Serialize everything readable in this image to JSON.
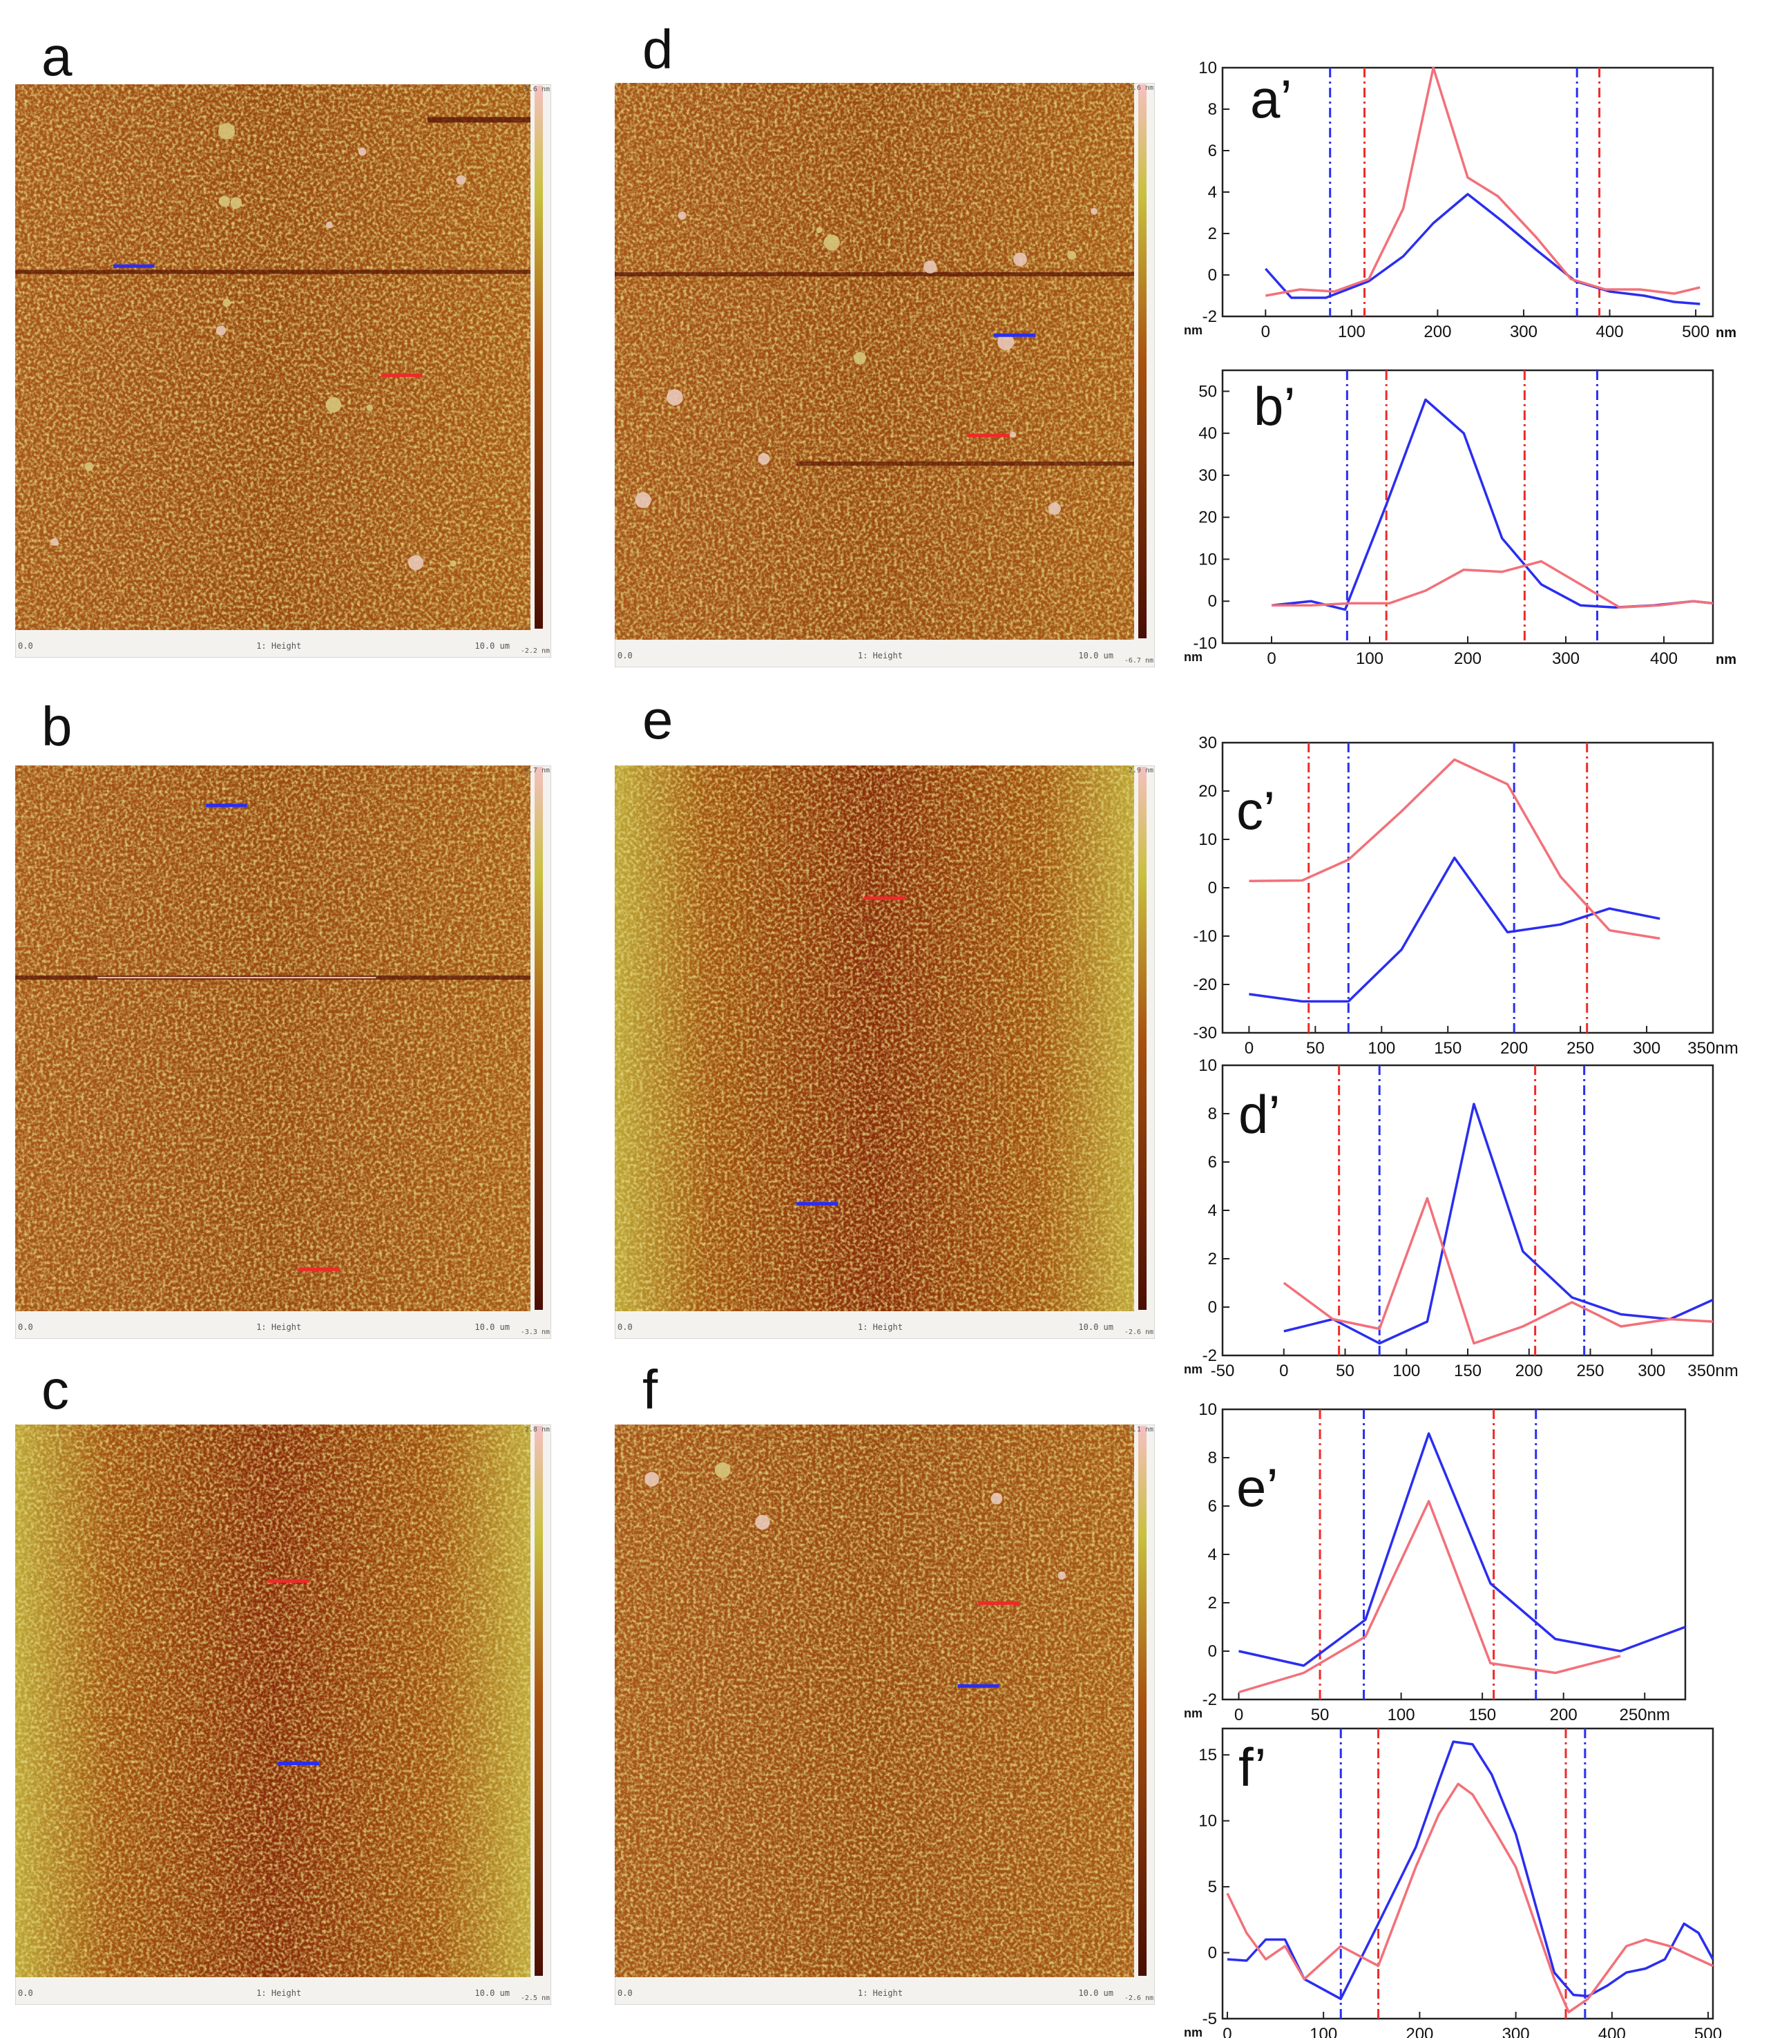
{
  "figure": {
    "panel_labels": [
      "a",
      "b",
      "c",
      "d",
      "e",
      "f"
    ]
  },
  "afm_images": [
    {
      "id": "a",
      "scale_top": "5.6 nm",
      "scale_bottom": "-2.2 nm",
      "foot_left": "0.0",
      "foot_mid": "1: Height",
      "foot_right": "10.0 um",
      "has_scan_line": true,
      "has_particles": true,
      "center_dark": false
    },
    {
      "id": "b",
      "scale_top": "6.7 nm",
      "scale_bottom": "-3.3 nm",
      "foot_left": "0.0",
      "foot_mid": "1: Height",
      "foot_right": "10.0 um",
      "has_scan_line": true,
      "has_particles": false,
      "center_dark": false
    },
    {
      "id": "c",
      "scale_top": "2.8 nm",
      "scale_bottom": "-2.5 nm",
      "foot_left": "0.0",
      "foot_mid": "1: Height",
      "foot_right": "10.0 um",
      "has_scan_line": false,
      "has_particles": false,
      "center_dark": true
    },
    {
      "id": "d",
      "scale_top": "8.6 nm",
      "scale_bottom": "-6.7 nm",
      "foot_left": "0.0",
      "foot_mid": "1: Height",
      "foot_right": "10.0 um",
      "has_scan_line": true,
      "has_particles": true,
      "center_dark": false
    },
    {
      "id": "e",
      "scale_top": "2.9 nm",
      "scale_bottom": "-2.6 nm",
      "foot_left": "0.0",
      "foot_mid": "1: Height",
      "foot_right": "10.0 um",
      "has_scan_line": false,
      "has_particles": false,
      "center_dark": true
    },
    {
      "id": "f",
      "scale_top": "3.1 nm",
      "scale_bottom": "-2.6 nm",
      "foot_left": "0.0",
      "foot_mid": "1: Height",
      "foot_right": "10.0 um",
      "has_scan_line": false,
      "has_particles": true,
      "center_dark": false
    }
  ],
  "colors": {
    "afm_dark": "#6b1a08",
    "afm_mid": "#a8520f",
    "afm_light": "#c8b43a",
    "blue": "#2a2ef0",
    "red": "#f2707a",
    "red_dash": "#ee2a2a",
    "axis": "#222222"
  },
  "chart_data": [
    {
      "type": "line",
      "label": "a’",
      "xlim": [
        -50,
        520
      ],
      "ylim": [
        -2,
        10
      ],
      "xticks": [
        0,
        100,
        200,
        300,
        400,
        500
      ],
      "xticklabels": [
        "0",
        "100",
        "200",
        "300",
        "400",
        "500"
      ],
      "yticks": [
        -2,
        0,
        2,
        4,
        6,
        8,
        10
      ],
      "yticklabels": [
        "-2",
        "0",
        "2",
        "4",
        "6",
        "8",
        "10"
      ],
      "unit_x": "nm",
      "unit_y": "nm",
      "series": [
        {
          "name": "blue",
          "color": "blue",
          "x": [
            0,
            30,
            70,
            120,
            160,
            195,
            235,
            275,
            315,
            360,
            400,
            440,
            475,
            505
          ],
          "y": [
            0.3,
            -1.1,
            -1.1,
            -0.3,
            0.9,
            2.5,
            3.9,
            2.6,
            1.2,
            -0.3,
            -0.8,
            -1.0,
            -1.3,
            -1.4
          ]
        },
        {
          "name": "red",
          "color": "red",
          "x": [
            0,
            40,
            80,
            120,
            160,
            195,
            235,
            270,
            315,
            355,
            395,
            435,
            475,
            505
          ],
          "y": [
            -1.0,
            -0.7,
            -0.8,
            -0.2,
            3.2,
            10.0,
            4.7,
            3.8,
            1.8,
            -0.2,
            -0.7,
            -0.7,
            -0.9,
            -0.6
          ]
        }
      ],
      "vlines": [
        {
          "x": 75,
          "color": "blue"
        },
        {
          "x": 115,
          "color": "red"
        },
        {
          "x": 362,
          "color": "blue"
        },
        {
          "x": 388,
          "color": "red"
        }
      ]
    },
    {
      "type": "line",
      "label": "b’",
      "xlim": [
        -50,
        450
      ],
      "ylim": [
        -10,
        55
      ],
      "xticks": [
        0,
        100,
        200,
        300,
        400
      ],
      "xticklabels": [
        "0",
        "100",
        "200",
        "300",
        "400"
      ],
      "yticks": [
        -10,
        0,
        10,
        20,
        30,
        40,
        50
      ],
      "yticklabels": [
        "-10",
        "0",
        "10",
        "20",
        "30",
        "40",
        "50"
      ],
      "unit_x": "nm",
      "unit_y": "nm",
      "series": [
        {
          "name": "blue",
          "color": "blue",
          "x": [
            0,
            40,
            75,
            117,
            157,
            196,
            235,
            275,
            315,
            350,
            390,
            430,
            450
          ],
          "y": [
            -1,
            0,
            -2,
            23,
            48,
            40,
            15,
            4,
            -1,
            -1.5,
            -1,
            0,
            -0.5
          ]
        },
        {
          "name": "red",
          "color": "red",
          "x": [
            0,
            40,
            80,
            120,
            157,
            196,
            235,
            275,
            315,
            355,
            395,
            430,
            450
          ],
          "y": [
            -1,
            -1,
            -0.5,
            -0.5,
            2.5,
            7.5,
            7,
            9.5,
            4,
            -1.5,
            -1,
            0,
            -0.5
          ]
        }
      ],
      "vlines": [
        {
          "x": 77,
          "color": "blue"
        },
        {
          "x": 117,
          "color": "red"
        },
        {
          "x": 258,
          "color": "red"
        },
        {
          "x": 332,
          "color": "blue"
        }
      ]
    },
    {
      "type": "line",
      "label": "c’",
      "xlim": [
        -20,
        350
      ],
      "ylim": [
        -30,
        30
      ],
      "xticks": [
        0,
        50,
        100,
        150,
        200,
        250,
        300,
        350
      ],
      "xticklabels": [
        "0",
        "50",
        "100",
        "150",
        "200",
        "250",
        "300",
        "350nm"
      ],
      "yticks": [
        -30,
        -20,
        -10,
        0,
        10,
        20,
        30
      ],
      "yticklabels": [
        "-30",
        "-20",
        "-10",
        "0",
        "10",
        "20",
        "30"
      ],
      "unit_x": "",
      "unit_y": "",
      "series": [
        {
          "name": "blue",
          "color": "blue",
          "x": [
            0,
            40,
            75,
            115,
            155,
            195,
            235,
            272,
            310
          ],
          "y": [
            -22,
            -23.5,
            -23.5,
            -12.8,
            6.2,
            -9.2,
            -7.6,
            -4.3,
            -6.4
          ]
        },
        {
          "name": "red",
          "color": "red",
          "x": [
            0,
            40,
            75,
            115,
            155,
            195,
            235,
            272,
            310
          ],
          "y": [
            1.4,
            1.5,
            5.8,
            15.8,
            26.5,
            21.4,
            2.3,
            -8.8,
            -10.5
          ]
        }
      ],
      "vlines": [
        {
          "x": 45,
          "color": "red"
        },
        {
          "x": 75,
          "color": "blue"
        },
        {
          "x": 200,
          "color": "blue"
        },
        {
          "x": 255,
          "color": "red"
        }
      ]
    },
    {
      "type": "line",
      "label": "d’",
      "xlim": [
        -50,
        350
      ],
      "ylim": [
        -2,
        10
      ],
      "xticks": [
        -50,
        0,
        50,
        100,
        150,
        200,
        250,
        300,
        350
      ],
      "xticklabels": [
        "-50",
        "0",
        "50",
        "100",
        "150",
        "200",
        "250",
        "300",
        "350nm"
      ],
      "yticks": [
        -2,
        0,
        2,
        4,
        6,
        8,
        10
      ],
      "yticklabels": [
        "-2",
        "0",
        "2",
        "4",
        "6",
        "8",
        "10"
      ],
      "unit_x": "",
      "unit_y": "nm",
      "series": [
        {
          "name": "blue",
          "color": "blue",
          "x": [
            0,
            40,
            78,
            117,
            155,
            195,
            235,
            275,
            315,
            350
          ],
          "y": [
            -1.0,
            -0.5,
            -1.5,
            -0.6,
            8.4,
            2.3,
            0.4,
            -0.3,
            -0.5,
            0.3
          ]
        },
        {
          "name": "red",
          "color": "red",
          "x": [
            0,
            40,
            78,
            117,
            155,
            195,
            235,
            275,
            315,
            350
          ],
          "y": [
            1.0,
            -0.5,
            -0.9,
            4.5,
            -1.5,
            -0.8,
            0.2,
            -0.8,
            -0.5,
            -0.6
          ]
        }
      ],
      "vlines": [
        {
          "x": 45,
          "color": "red"
        },
        {
          "x": 78,
          "color": "blue"
        },
        {
          "x": 205,
          "color": "red"
        },
        {
          "x": 245,
          "color": "blue"
        }
      ]
    },
    {
      "type": "line",
      "label": "e’",
      "xlim": [
        -10,
        275
      ],
      "ylim": [
        -2,
        10
      ],
      "xticks": [
        0,
        50,
        100,
        150,
        200,
        250
      ],
      "xticklabels": [
        "0",
        "50",
        "100",
        "150",
        "200",
        "250nm"
      ],
      "yticks": [
        -2,
        0,
        2,
        4,
        6,
        8,
        10
      ],
      "yticklabels": [
        "-2",
        "0",
        "2",
        "4",
        "6",
        "8",
        "10"
      ],
      "unit_x": "",
      "unit_y": "nm",
      "series": [
        {
          "name": "blue",
          "color": "blue",
          "x": [
            0,
            40,
            78,
            117,
            155,
            195,
            235,
            275
          ],
          "y": [
            0,
            -0.6,
            1.3,
            9.0,
            2.8,
            0.5,
            0,
            1.0
          ]
        },
        {
          "name": "red",
          "color": "red",
          "x": [
            0,
            40,
            78,
            117,
            155,
            195,
            235
          ],
          "y": [
            -1.7,
            -0.9,
            0.6,
            6.2,
            -0.5,
            -0.9,
            -0.2
          ]
        }
      ],
      "vlines": [
        {
          "x": 50,
          "color": "red"
        },
        {
          "x": 77,
          "color": "blue"
        },
        {
          "x": 157,
          "color": "red"
        },
        {
          "x": 183,
          "color": "blue"
        }
      ]
    },
    {
      "type": "line",
      "label": "f’",
      "xlim": [
        -5,
        505
      ],
      "ylim": [
        -5,
        17
      ],
      "xticks": [
        0,
        100,
        200,
        300,
        400,
        500
      ],
      "xticklabels": [
        "0",
        "100",
        "200",
        "300",
        "400",
        "500"
      ],
      "yticks": [
        -5,
        0,
        5,
        10,
        15
      ],
      "yticklabels": [
        "-5",
        "0",
        "5",
        "10",
        "15"
      ],
      "unit_x": "",
      "unit_y": "nm",
      "series": [
        {
          "name": "blue",
          "color": "blue",
          "x": [
            0,
            20,
            40,
            60,
            80,
            118,
            157,
            196,
            220,
            235,
            255,
            275,
            300,
            340,
            360,
            375,
            395,
            415,
            435,
            455,
            475,
            490,
            505
          ],
          "y": [
            -0.5,
            -0.6,
            1.0,
            1.0,
            -2.0,
            -3.5,
            2.2,
            8.0,
            13.0,
            16.0,
            15.8,
            13.5,
            9.0,
            -1.5,
            -3.2,
            -3.3,
            -2.5,
            -1.5,
            -1.2,
            -0.5,
            2.2,
            1.5,
            -0.5
          ]
        },
        {
          "name": "red",
          "color": "red",
          "x": [
            0,
            20,
            40,
            60,
            80,
            118,
            157,
            196,
            220,
            240,
            255,
            280,
            300,
            340,
            355,
            375,
            395,
            415,
            435,
            460,
            490,
            505
          ],
          "y": [
            4.5,
            1.5,
            -0.5,
            0.5,
            -2.0,
            0.5,
            -1.0,
            6.5,
            10.5,
            12.8,
            12.0,
            9.0,
            6.5,
            -2.0,
            -4.5,
            -3.5,
            -1.5,
            0.5,
            1.0,
            0.5,
            -0.5,
            -1.0
          ]
        }
      ],
      "vlines": [
        {
          "x": 118,
          "color": "blue"
        },
        {
          "x": 157,
          "color": "red"
        },
        {
          "x": 352,
          "color": "red"
        },
        {
          "x": 372,
          "color": "blue"
        }
      ]
    }
  ]
}
